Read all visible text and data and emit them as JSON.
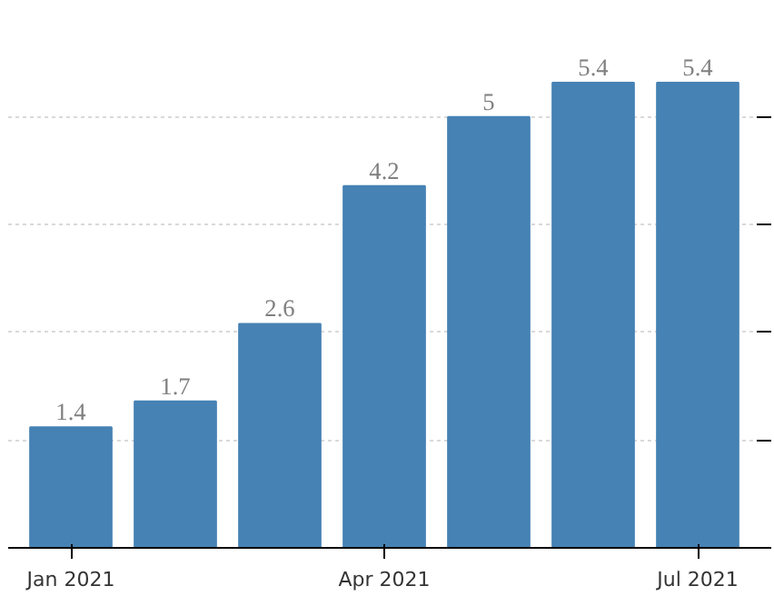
{
  "chart_data": {
    "type": "bar",
    "categories": [
      "Jan 2021",
      null,
      null,
      "Apr 2021",
      null,
      null,
      "Jul 2021"
    ],
    "values": [
      1.4,
      1.7,
      2.6,
      4.2,
      5,
      5.4,
      5.4
    ],
    "color": "#4682b4",
    "data_labels": true,
    "yticks": [
      {
        "value": 0,
        "label": null
      },
      {
        "value": 1.25,
        "label": null
      },
      {
        "value": 2.5,
        "label": null
      },
      {
        "value": 3.75,
        "label": null
      },
      {
        "value": 5,
        "label": null
      }
    ],
    "grid": "y",
    "tick_labels": "x"
  }
}
